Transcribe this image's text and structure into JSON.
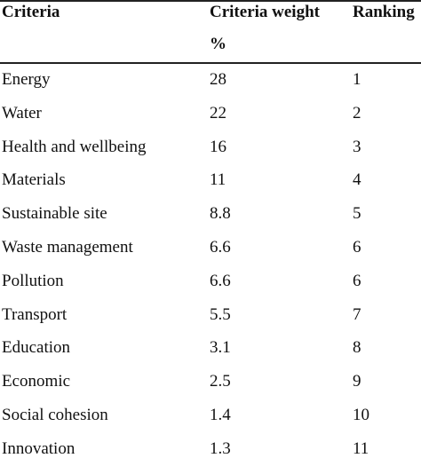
{
  "table": {
    "headers": {
      "criteria": "Criteria",
      "weight_line1": "Criteria weight",
      "weight_line2": "%",
      "ranking": "Ranking"
    },
    "rows": [
      {
        "criteria": "Energy",
        "weight": "28",
        "ranking": "1"
      },
      {
        "criteria": "Water",
        "weight": "22",
        "ranking": "2"
      },
      {
        "criteria": "Health and wellbeing",
        "weight": "16",
        "ranking": "3"
      },
      {
        "criteria": "Materials",
        "weight": "11",
        "ranking": "4"
      },
      {
        "criteria": "Sustainable site",
        "weight": "8.8",
        "ranking": "5"
      },
      {
        "criteria": "Waste management",
        "weight": "6.6",
        "ranking": "6"
      },
      {
        "criteria": "Pollution",
        "weight": "6.6",
        "ranking": "6"
      },
      {
        "criteria": "Transport",
        "weight": "5.5",
        "ranking": "7"
      },
      {
        "criteria": "Education",
        "weight": "3.1",
        "ranking": "8"
      },
      {
        "criteria": "Economic",
        "weight": "2.5",
        "ranking": "9"
      },
      {
        "criteria": "Social cohesion",
        "weight": "1.4",
        "ranking": "10"
      },
      {
        "criteria": "Innovation",
        "weight": "1.3",
        "ranking": "11"
      }
    ]
  }
}
